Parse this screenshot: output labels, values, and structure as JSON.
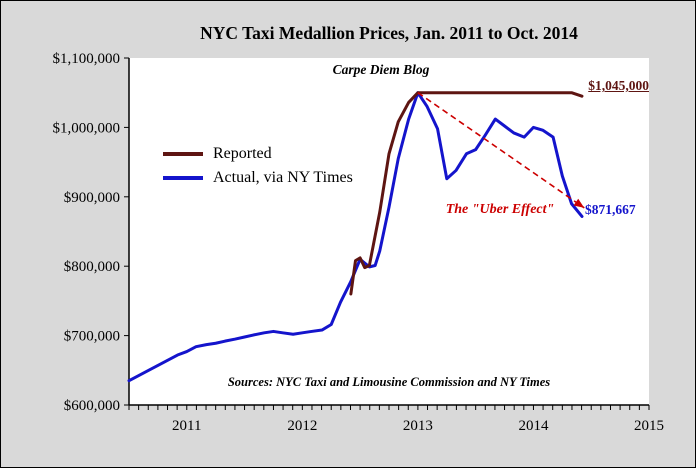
{
  "chart_data": {
    "type": "line",
    "title": "NYC Taxi Medallion Prices, Jan. 2011 to Oct. 2014",
    "x_range": [
      2010.5,
      2015.0
    ],
    "x_ticks": [
      2011,
      2012,
      2013,
      2014,
      2015
    ],
    "minor_x_ticks_per_year": 12,
    "y_range": [
      600000,
      1100000
    ],
    "y_ticks": [
      600000,
      700000,
      800000,
      900000,
      1000000,
      1100000
    ],
    "y_tick_labels": [
      "$600,000",
      "$700,000",
      "$800,000",
      "$900,000",
      "$1,000,000",
      "$1,100,000"
    ],
    "grid": false,
    "legend_position": "upper-left-inside",
    "series": [
      {
        "name": "Reported",
        "color": "#5e1512",
        "width": 3,
        "points": [
          [
            2012.42,
            760000
          ],
          [
            2012.46,
            808000
          ],
          [
            2012.5,
            812000
          ],
          [
            2012.54,
            798000
          ],
          [
            2012.58,
            801000
          ],
          [
            2012.67,
            878000
          ],
          [
            2012.75,
            962000
          ],
          [
            2012.83,
            1008000
          ],
          [
            2012.92,
            1036000
          ],
          [
            2013.0,
            1050000
          ],
          [
            2013.25,
            1050000
          ],
          [
            2013.5,
            1050000
          ],
          [
            2013.75,
            1050000
          ],
          [
            2014.0,
            1050000
          ],
          [
            2014.25,
            1050000
          ],
          [
            2014.33,
            1050000
          ],
          [
            2014.42,
            1045000
          ]
        ]
      },
      {
        "name": "Actual, via NY Times",
        "color": "#1414cc",
        "width": 3,
        "points": [
          [
            2010.5,
            635000
          ],
          [
            2010.58,
            642000
          ],
          [
            2010.67,
            650000
          ],
          [
            2010.75,
            657000
          ],
          [
            2010.83,
            664000
          ],
          [
            2010.92,
            672000
          ],
          [
            2011.0,
            677000
          ],
          [
            2011.08,
            684000
          ],
          [
            2011.17,
            687000
          ],
          [
            2011.25,
            689000
          ],
          [
            2011.33,
            692000
          ],
          [
            2011.42,
            695000
          ],
          [
            2011.5,
            698000
          ],
          [
            2011.58,
            701000
          ],
          [
            2011.67,
            704000
          ],
          [
            2011.75,
            706000
          ],
          [
            2011.83,
            704000
          ],
          [
            2011.92,
            702000
          ],
          [
            2012.0,
            704000
          ],
          [
            2012.08,
            706000
          ],
          [
            2012.17,
            708000
          ],
          [
            2012.25,
            716000
          ],
          [
            2012.33,
            748000
          ],
          [
            2012.42,
            778000
          ],
          [
            2012.5,
            810000
          ],
          [
            2012.58,
            799000
          ],
          [
            2012.63,
            801000
          ],
          [
            2012.67,
            822000
          ],
          [
            2012.75,
            885000
          ],
          [
            2012.83,
            955000
          ],
          [
            2012.92,
            1012000
          ],
          [
            2013.0,
            1050000
          ],
          [
            2013.08,
            1030000
          ],
          [
            2013.17,
            998000
          ],
          [
            2013.25,
            926000
          ],
          [
            2013.33,
            938000
          ],
          [
            2013.42,
            962000
          ],
          [
            2013.5,
            968000
          ],
          [
            2013.58,
            988000
          ],
          [
            2013.67,
            1012000
          ],
          [
            2013.75,
            1002000
          ],
          [
            2013.83,
            992000
          ],
          [
            2013.92,
            986000
          ],
          [
            2014.0,
            1000000
          ],
          [
            2014.08,
            996000
          ],
          [
            2014.17,
            986000
          ],
          [
            2014.25,
            930000
          ],
          [
            2014.33,
            890000
          ],
          [
            2014.42,
            871667
          ]
        ]
      }
    ],
    "arrow": {
      "from": [
        2013.0,
        1050000
      ],
      "to": [
        2014.44,
        884000
      ],
      "color": "#cc0000",
      "dashed": true
    },
    "annotations": {
      "watermark": "Carpe Diem Blog",
      "reported_end": {
        "text": "$1,045,000",
        "color": "#5e1512"
      },
      "actual_end": {
        "text": "$871,667",
        "color": "#1414cc"
      },
      "uber_effect": {
        "text": "The \"Uber Effect\"",
        "color": "#cc0000"
      },
      "sources": "Sources: NYC Taxi and Limousine Commission and NY Times"
    }
  }
}
